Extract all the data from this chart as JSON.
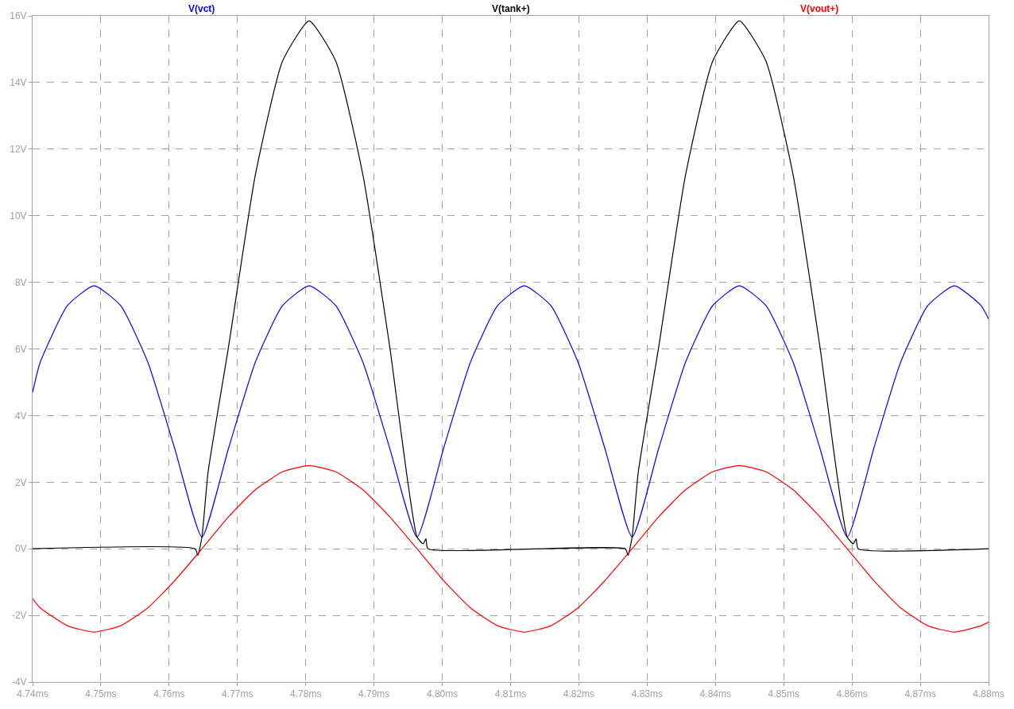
{
  "chart_data": {
    "type": "line",
    "xlim": [
      4.74,
      4.88
    ],
    "xticks": [
      {
        "value": 4.74,
        "label": "4.74ms"
      },
      {
        "value": 4.75,
        "label": "4.75ms"
      },
      {
        "value": 4.76,
        "label": "4.76ms"
      },
      {
        "value": 4.77,
        "label": "4.77ms"
      },
      {
        "value": 4.78,
        "label": "4.78ms"
      },
      {
        "value": 4.79,
        "label": "4.79ms"
      },
      {
        "value": 4.8,
        "label": "4.80ms"
      },
      {
        "value": 4.81,
        "label": "4.81ms"
      },
      {
        "value": 4.82,
        "label": "4.82ms"
      },
      {
        "value": 4.83,
        "label": "4.83ms"
      },
      {
        "value": 4.84,
        "label": "4.84ms"
      },
      {
        "value": 4.85,
        "label": "4.85ms"
      },
      {
        "value": 4.86,
        "label": "4.86ms"
      },
      {
        "value": 4.87,
        "label": "4.87ms"
      },
      {
        "value": 4.88,
        "label": "4.88ms"
      }
    ],
    "ylim": [
      -4,
      16
    ],
    "yticks": [
      {
        "value": -4,
        "label": "-4V"
      },
      {
        "value": -2,
        "label": "-2V"
      },
      {
        "value": 0,
        "label": "0V"
      },
      {
        "value": 2,
        "label": "2V"
      },
      {
        "value": 4,
        "label": "4V"
      },
      {
        "value": 6,
        "label": "6V"
      },
      {
        "value": 8,
        "label": "8V"
      },
      {
        "value": 10,
        "label": "10V"
      },
      {
        "value": 12,
        "label": "12V"
      },
      {
        "value": 14,
        "label": "14V"
      },
      {
        "value": 16,
        "label": "16V"
      }
    ],
    "grid": true,
    "marker": "none",
    "line_style": "solid",
    "x": [
      4.74,
      4.7411,
      4.7451,
      4.749,
      4.7529,
      4.7569,
      4.7608,
      4.7648,
      4.7687,
      4.7726,
      4.7766,
      4.7805,
      4.7844,
      4.7884,
      4.7923,
      4.7963,
      4.8002,
      4.8041,
      4.8081,
      4.812,
      4.8159,
      4.8199,
      4.8238,
      4.8278,
      4.8317,
      4.8356,
      4.8396,
      4.8435,
      4.8474,
      4.8514,
      4.8553,
      4.8593,
      4.8632,
      4.8671,
      4.8711,
      4.875,
      4.8789,
      4.88
    ],
    "series": [
      {
        "name": "V(vct)",
        "color": "#0000ff",
        "values": [
          4.7,
          5.59,
          7.3,
          7.9,
          7.3,
          5.59,
          3.02,
          0.35,
          3.02,
          5.59,
          7.3,
          7.9,
          7.3,
          5.59,
          3.02,
          0.35,
          3.02,
          5.59,
          7.3,
          7.9,
          7.3,
          5.59,
          3.02,
          0.35,
          3.02,
          5.59,
          7.3,
          7.9,
          7.3,
          5.59,
          3.02,
          0.35,
          3.02,
          5.59,
          7.3,
          7.9,
          7.3,
          6.9
        ]
      },
      {
        "name": "V(tank+)",
        "color": "#000000",
        "x": [
          4.74,
          4.7638,
          4.7642,
          4.7648,
          4.7657,
          4.7687,
          4.7726,
          4.7766,
          4.7805,
          4.7844,
          4.7884,
          4.7923,
          4.7963,
          4.7972,
          4.7976,
          4.7979,
          4.8268,
          4.8272,
          4.8278,
          4.8287,
          4.8317,
          4.8356,
          4.8396,
          4.8435,
          4.8474,
          4.8514,
          4.8553,
          4.8593,
          4.8602,
          4.8606,
          4.8609,
          4.88
        ],
        "values": [
          0,
          0,
          -0.2,
          0.35,
          2.3,
          6.07,
          11.2,
          14.64,
          15.85,
          14.64,
          11.2,
          6.07,
          0.35,
          0.15,
          0.3,
          0,
          0,
          -0.2,
          0.35,
          2.3,
          6.07,
          11.2,
          14.64,
          15.85,
          14.64,
          11.2,
          6.07,
          0.35,
          0.15,
          0.3,
          0,
          0
        ]
      },
      {
        "name": "V(vout+)",
        "color": "#ff0000",
        "values": [
          -1.5,
          -1.77,
          -2.31,
          -2.5,
          -2.31,
          -1.77,
          -0.96,
          0,
          0.96,
          1.77,
          2.31,
          2.5,
          2.31,
          1.77,
          0.96,
          0,
          -0.96,
          -1.77,
          -2.31,
          -2.5,
          -2.31,
          -1.77,
          -0.96,
          0,
          0.96,
          1.77,
          2.31,
          2.5,
          2.31,
          1.77,
          0.96,
          0,
          -0.96,
          -1.77,
          -2.31,
          -2.5,
          -2.31,
          -2.2
        ]
      }
    ]
  }
}
